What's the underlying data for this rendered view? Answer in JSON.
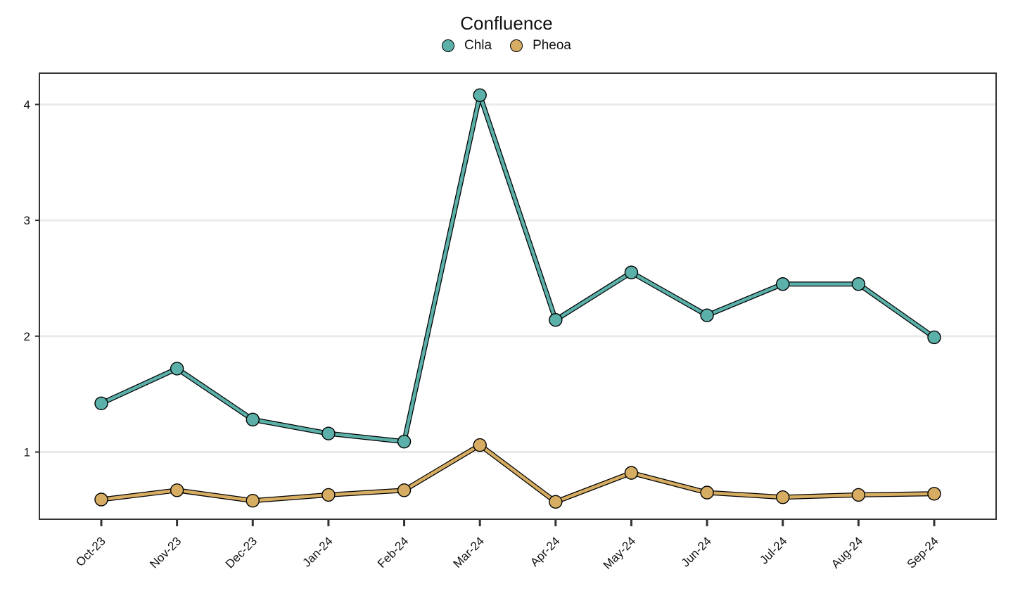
{
  "chart_data": {
    "type": "line",
    "title": "Confluence",
    "categories": [
      "Oct-23",
      "Nov-23",
      "Dec-23",
      "Jan-24",
      "Feb-24",
      "Mar-24",
      "Apr-24",
      "May-24",
      "Jun-24",
      "Jul-24",
      "Aug-24",
      "Sep-24"
    ],
    "series": [
      {
        "name": "Chla",
        "color": "#5BB0A9",
        "values": [
          1.42,
          1.72,
          1.28,
          1.16,
          1.09,
          4.08,
          2.14,
          2.55,
          2.18,
          2.45,
          2.45,
          1.99
        ]
      },
      {
        "name": "Pheoa",
        "color": "#D6AD62",
        "values": [
          0.59,
          0.67,
          0.58,
          0.63,
          0.67,
          1.06,
          0.57,
          0.82,
          0.65,
          0.61,
          0.63,
          0.64
        ]
      }
    ],
    "yticks": [
      1,
      2,
      3,
      4
    ],
    "ylim": [
      0.42,
      4.27
    ],
    "xlabel": "",
    "ylabel": "",
    "grid": "horizontal-major",
    "legend_position": "top"
  }
}
